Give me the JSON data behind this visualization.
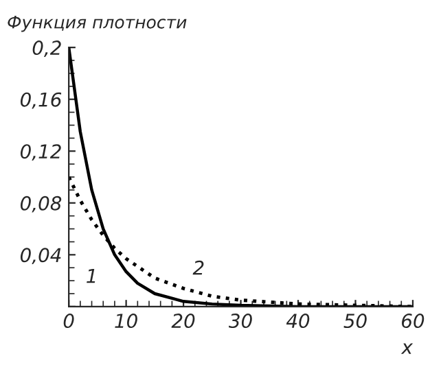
{
  "chart_data": {
    "type": "line",
    "ylabel": "Функция плотности",
    "xlabel": "x",
    "series": [
      {
        "color": "#000000",
        "line_style": "solid",
        "x": [
          0,
          2,
          4,
          6,
          8,
          10,
          12,
          15,
          20,
          25,
          30,
          40,
          60
        ],
        "values": [
          0.2,
          0.135,
          0.09,
          0.06,
          0.04,
          0.027,
          0.018,
          0.01,
          0.004,
          0.002,
          0.001,
          0,
          0
        ]
      },
      {
        "color": "#000000",
        "line_style": "dotted",
        "x": [
          0,
          2,
          4,
          6,
          8,
          10,
          15,
          20,
          25,
          30,
          40,
          50,
          60
        ],
        "values": [
          0.1,
          0.082,
          0.067,
          0.055,
          0.045,
          0.037,
          0.022,
          0.014,
          0.008,
          0.005,
          0.002,
          0.001,
          0
        ]
      }
    ],
    "annotations": [
      "1",
      "2"
    ],
    "xlim": [
      0,
      60
    ],
    "xticks": [
      0,
      10,
      20,
      30,
      40,
      50,
      60
    ],
    "ylim": [
      0,
      0.2
    ],
    "yticks": [
      {
        "value": 0,
        "label": null
      },
      {
        "value": 0.04,
        "label": "0,04"
      },
      {
        "value": 0.08,
        "label": "0,08"
      },
      {
        "value": 0.12,
        "label": "0,12"
      },
      {
        "value": 0.16,
        "label": "0,16"
      },
      {
        "value": 0.2,
        "label": "0,2"
      }
    ],
    "grid": false,
    "legend": false
  }
}
